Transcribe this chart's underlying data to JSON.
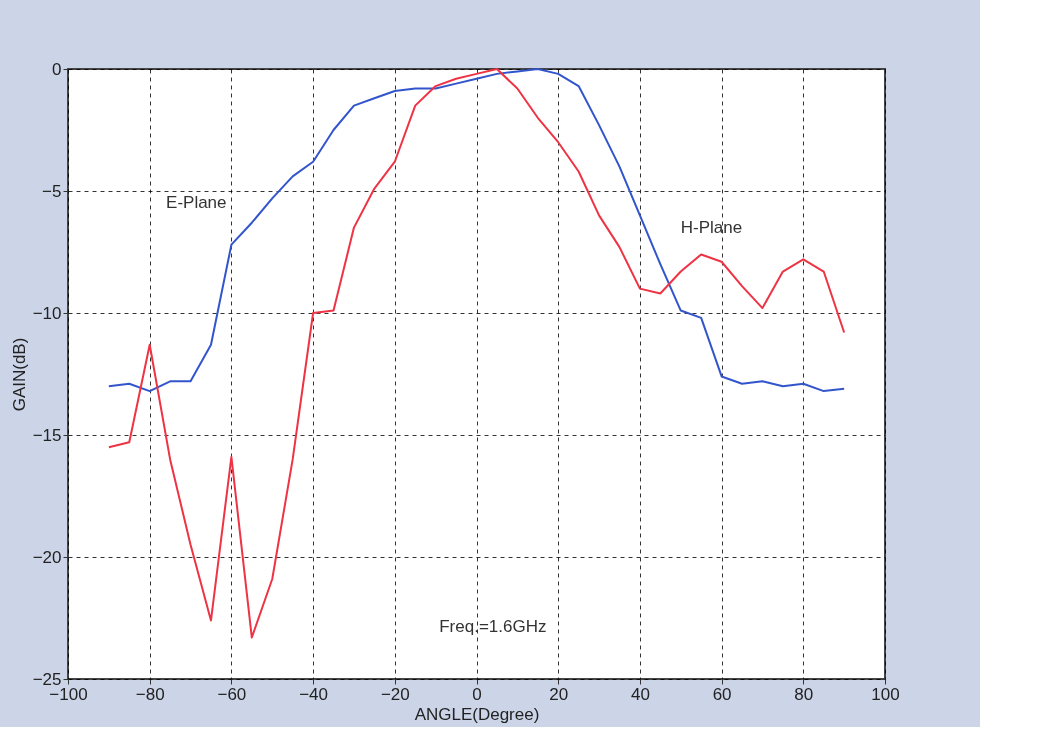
{
  "chart_data": {
    "type": "line",
    "xlabel": "ANGLE(Degree)",
    "ylabel": "GAIN(dB)",
    "x": [
      -90,
      -85,
      -80,
      -75,
      -70,
      -65,
      -60,
      -55,
      -50,
      -45,
      -40,
      -35,
      -30,
      -25,
      -20,
      -15,
      -10,
      -5,
      0,
      5,
      10,
      15,
      20,
      25,
      30,
      35,
      40,
      45,
      50,
      55,
      60,
      65,
      70,
      75,
      80,
      85,
      90
    ],
    "series": [
      {
        "name": "E-Plane",
        "color": "#3355cc",
        "values": [
          -13.0,
          -12.9,
          -13.2,
          -12.8,
          -12.8,
          -11.3,
          -7.2,
          -6.3,
          -5.3,
          -4.4,
          -3.8,
          -2.5,
          -1.5,
          -1.2,
          -0.9,
          -0.8,
          -0.8,
          -0.6,
          -0.4,
          -0.2,
          -0.1,
          0,
          -0.2,
          -0.7,
          -2.3,
          -4.0,
          -6.0,
          -8.0,
          -9.9,
          -10.2,
          -12.6,
          -12.9,
          -12.8,
          -13.0,
          -12.9,
          -13.2,
          -13.1
        ]
      },
      {
        "name": "H-Plane",
        "color": "#ee3344",
        "values": [
          -15.5,
          -15.3,
          -11.3,
          -16.0,
          -19.5,
          -22.6,
          -15.9,
          -23.3,
          -20.9,
          -16.0,
          -10.0,
          -9.9,
          -6.5,
          -4.9,
          -3.8,
          -1.5,
          -0.7,
          -0.4,
          -0.2,
          0,
          -0.8,
          -2.0,
          -3.0,
          -4.2,
          -6.0,
          -7.3,
          -9.0,
          -9.2,
          -8.3,
          -7.6,
          -7.9,
          -8.9,
          -9.8,
          -8.3,
          -7.8,
          -8.3,
          -10.8
        ]
      }
    ],
    "annotations": [
      "Freq.=1.6GHz"
    ],
    "xlim": [
      -100,
      100
    ],
    "xticks": [
      -100,
      -80,
      -60,
      -40,
      -20,
      0,
      20,
      40,
      60,
      80,
      100
    ],
    "ylim": [
      -25,
      0
    ],
    "yticks": [
      -25,
      -20,
      -15,
      -10,
      -5,
      0
    ],
    "grid": true,
    "legend": false,
    "marker": "none",
    "line_style": "solid"
  }
}
